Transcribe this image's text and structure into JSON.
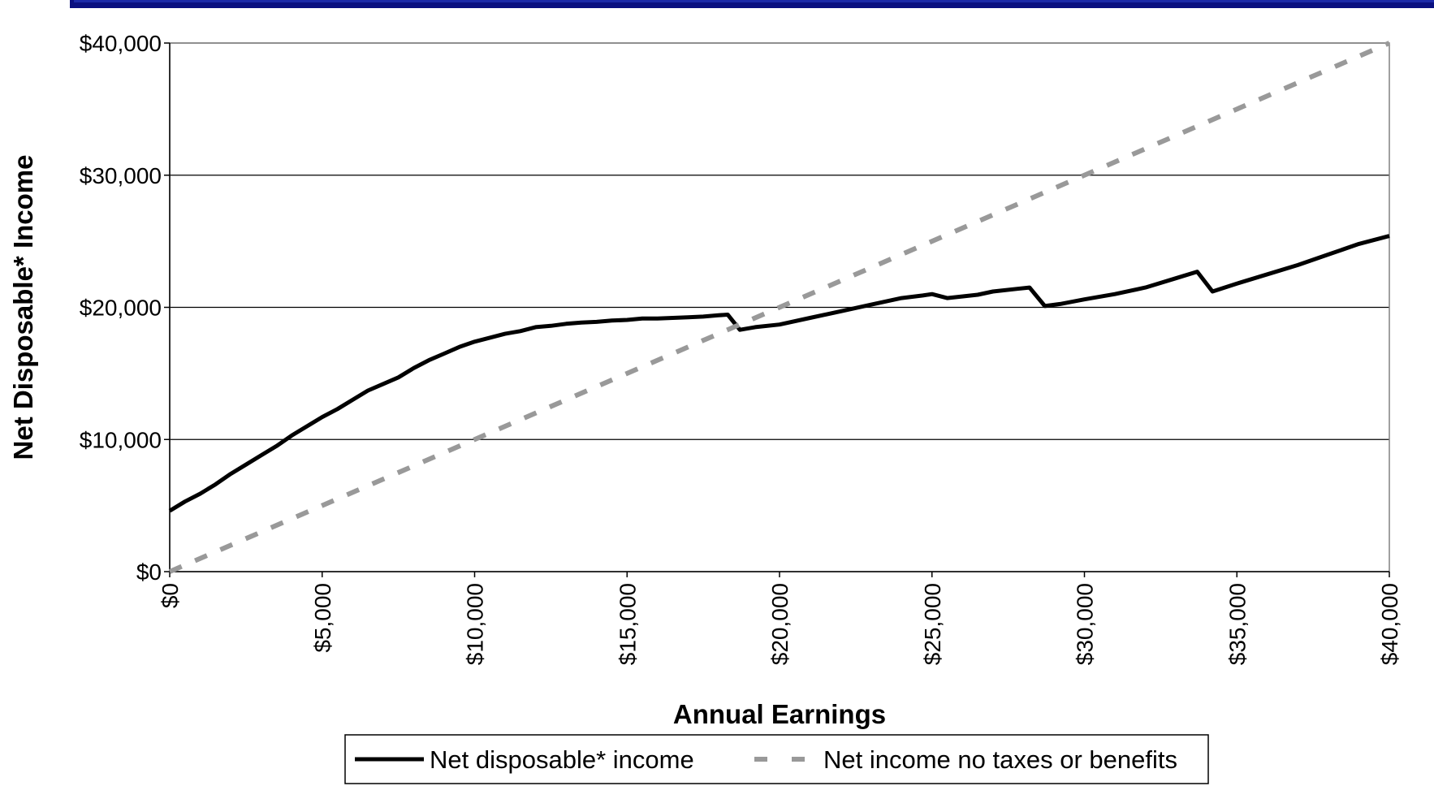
{
  "chart_data": {
    "type": "line",
    "title": "",
    "xlabel": "Annual Earnings",
    "ylabel": "Net Disposable* Income",
    "xlim": [
      0,
      40000
    ],
    "ylim": [
      0,
      40000
    ],
    "x_ticks": [
      0,
      5000,
      10000,
      15000,
      20000,
      25000,
      30000,
      35000,
      40000
    ],
    "x_tick_labels": [
      "$0",
      "$5,000",
      "$10,000",
      "$15,000",
      "$20,000",
      "$25,000",
      "$30,000",
      "$35,000",
      "$40,000"
    ],
    "y_ticks": [
      0,
      10000,
      20000,
      30000,
      40000
    ],
    "y_tick_labels": [
      "$0",
      "$10,000",
      "$20,000",
      "$30,000",
      "$40,000"
    ],
    "grid": "horizontal",
    "legend_position": "bottom",
    "series": [
      {
        "name": "Net disposable* income",
        "style": "solid",
        "color": "#000000",
        "x": [
          0,
          500,
          1000,
          1500,
          2000,
          2500,
          3000,
          3500,
          4000,
          4500,
          5000,
          5500,
          6000,
          6500,
          7000,
          7500,
          8000,
          8500,
          9000,
          9500,
          10000,
          10500,
          11000,
          11500,
          12000,
          12500,
          13000,
          13500,
          14000,
          14500,
          15000,
          15500,
          16000,
          16500,
          17000,
          17500,
          18000,
          18300,
          18700,
          19200,
          20000,
          21000,
          22000,
          23000,
          24000,
          24700,
          25000,
          25500,
          26500,
          27000,
          27800,
          28200,
          28700,
          29200,
          30000,
          31000,
          32000,
          33000,
          33700,
          34200,
          35000,
          36000,
          37000,
          38000,
          39000,
          40000
        ],
        "y": [
          4600,
          5300,
          5900,
          6600,
          7400,
          8100,
          8800,
          9500,
          10300,
          11000,
          11700,
          12300,
          13000,
          13700,
          14200,
          14700,
          15400,
          16000,
          16500,
          17000,
          17400,
          17700,
          18000,
          18200,
          18500,
          18600,
          18750,
          18850,
          18900,
          19000,
          19050,
          19150,
          19150,
          19200,
          19250,
          19300,
          19400,
          19450,
          18300,
          18500,
          18700,
          19200,
          19700,
          20200,
          20700,
          20900,
          21000,
          20700,
          20950,
          21200,
          21400,
          21500,
          20100,
          20250,
          20600,
          21000,
          21500,
          22200,
          22700,
          21200,
          21800,
          22500,
          23200,
          24000,
          24800,
          25400
        ]
      },
      {
        "name": "Net income no taxes or benefits",
        "style": "dashed",
        "color": "#999999",
        "x": [
          0,
          40000
        ],
        "y": [
          0,
          40000
        ]
      }
    ]
  }
}
